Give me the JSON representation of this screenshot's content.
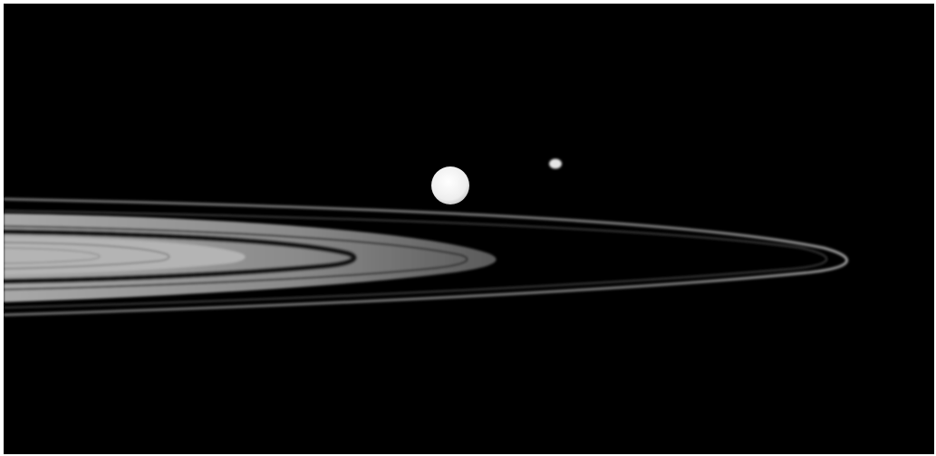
{
  "scene": {
    "subject": "saturn-rings-with-moons",
    "background_color": "#000000",
    "frame_color": "#ffffff",
    "ring_color": "#9a9a9a",
    "moon_color": "#f2f2f2"
  }
}
